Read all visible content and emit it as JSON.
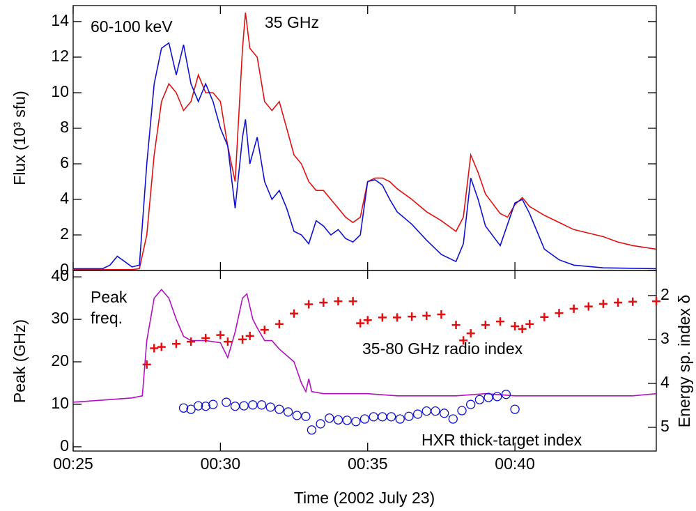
{
  "chart_data": [
    {
      "type": "line",
      "ylabel": "Flux (10³ sfu)",
      "xlim": [
        25,
        44.8
      ],
      "xticks": [
        25,
        30,
        35,
        40
      ],
      "xtick_labels": false,
      "ylim": [
        0,
        14.9
      ],
      "yticks": [
        0,
        2,
        4,
        6,
        8,
        10,
        12,
        14
      ],
      "annotations": [
        {
          "text": "60-100 keV",
          "color": "#1010d0"
        },
        {
          "text": "35 GHz",
          "color": "#e01010"
        }
      ],
      "series": [
        {
          "name": "35 GHz",
          "color": "#e01010",
          "x": [
            25,
            25.5,
            26,
            26.5,
            27,
            27.25,
            27.5,
            27.75,
            28,
            28.25,
            28.5,
            28.75,
            29,
            29.25,
            29.5,
            29.75,
            30,
            30.25,
            30.5,
            30.75,
            30.85,
            31,
            31.25,
            31.5,
            31.75,
            32,
            32.25,
            32.5,
            32.75,
            33,
            33.25,
            33.5,
            33.75,
            34,
            34.25,
            34.5,
            34.75,
            35,
            35.25,
            35.5,
            35.75,
            36,
            36.5,
            37,
            37.5,
            38,
            38.25,
            38.5,
            38.75,
            39,
            39.5,
            39.75,
            40,
            40.25,
            40.5,
            41,
            41.5,
            42,
            42.5,
            43,
            43.5,
            44,
            44.8
          ],
          "values": [
            0.05,
            0.05,
            0.05,
            0.05,
            0.05,
            0.1,
            2,
            6.5,
            9.5,
            10.5,
            10,
            9,
            9.5,
            11,
            10,
            10,
            9.5,
            7,
            5,
            12.5,
            14.5,
            12.5,
            12,
            9.5,
            9,
            9.5,
            8,
            6.5,
            6,
            5,
            4.5,
            4.5,
            4,
            3.5,
            3,
            2.7,
            3,
            5,
            5.2,
            5.2,
            5,
            4.6,
            4,
            3.3,
            2.8,
            2.2,
            3,
            6.5,
            5.5,
            4.3,
            3.2,
            3,
            3.7,
            4.1,
            3.6,
            3.1,
            2.7,
            2.3,
            2.1,
            1.9,
            1.6,
            1.4,
            1.2
          ]
        },
        {
          "name": "60-100 keV",
          "color": "#1010d0",
          "x": [
            25,
            26,
            26.25,
            26.5,
            26.75,
            27,
            27.25,
            27.5,
            27.75,
            28,
            28.25,
            28.5,
            28.75,
            29,
            29.25,
            29.5,
            29.75,
            30,
            30.25,
            30.5,
            30.75,
            30.85,
            31,
            31.25,
            31.5,
            31.75,
            32,
            32.25,
            32.5,
            32.75,
            33,
            33.25,
            33.5,
            33.75,
            34,
            34.25,
            34.5,
            34.75,
            35,
            35.25,
            35.5,
            35.75,
            36,
            36.5,
            37,
            37.5,
            38,
            38.25,
            38.5,
            38.75,
            39,
            39.5,
            40,
            40.25,
            40.5,
            41,
            41.5,
            42,
            43,
            44.8
          ],
          "values": [
            0.1,
            0.1,
            0.3,
            0.8,
            0.5,
            0.2,
            0.3,
            6,
            10.5,
            12.5,
            12.8,
            11,
            12.7,
            10.5,
            9.5,
            10.5,
            9.5,
            8,
            7,
            3.5,
            7.5,
            8.5,
            6,
            7.5,
            5,
            4,
            4.5,
            3.5,
            2.2,
            2,
            1.5,
            2.8,
            2.5,
            2,
            2.3,
            1.8,
            1.6,
            2,
            5,
            5.1,
            4.8,
            4,
            3.3,
            2.6,
            1.7,
            0.9,
            0.5,
            1.5,
            5.2,
            4,
            2.5,
            1.4,
            3.8,
            4,
            3.2,
            1.2,
            0.6,
            0.3,
            0.15,
            0.1
          ]
        }
      ]
    },
    {
      "type": "line",
      "xlabel": "Time (2002 July 23)",
      "ylabel": "Peak (GHz)",
      "y2label": "Energy sp. index δ",
      "xlim": [
        25,
        44.8
      ],
      "xticks": [
        {
          "value": 25,
          "label": "00:25"
        },
        {
          "value": 30,
          "label": "00:30"
        },
        {
          "value": 35,
          "label": "00:35"
        },
        {
          "value": 40,
          "label": "00:40"
        }
      ],
      "xtick_labels": true,
      "ylim": [
        -1,
        41.5
      ],
      "yticks": [
        0,
        10,
        20,
        30,
        40
      ],
      "y2lim": [
        5.54,
        1.43
      ],
      "y2ticks": [
        2,
        3,
        4,
        5
      ],
      "annotations": [
        {
          "text": "Peak",
          "color": "#b010c0"
        },
        {
          "text": "freq.",
          "color": "#b010c0"
        },
        {
          "text": "35-80 GHz radio index",
          "color": "#e01010"
        },
        {
          "text": "HXR thick-target index",
          "color": "#1010d0"
        }
      ],
      "series": [
        {
          "name": "Peak freq.",
          "color": "#b010c0",
          "style": "line",
          "x": [
            25,
            26,
            27,
            27.35,
            27.5,
            27.75,
            28,
            28.25,
            28.5,
            28.75,
            29,
            29.5,
            30,
            30.25,
            30.5,
            30.75,
            30.9,
            31.1,
            31.25,
            31.5,
            31.75,
            32,
            32.5,
            32.75,
            32.9,
            33,
            33.1,
            33.5,
            34,
            35,
            36,
            37,
            38,
            39,
            40,
            41,
            42,
            43,
            44,
            44.8
          ],
          "values": [
            10.5,
            11,
            11.5,
            12,
            25,
            35,
            37,
            35,
            30,
            26,
            25,
            25,
            24.5,
            21,
            27,
            35,
            36,
            30,
            28,
            25,
            25,
            23,
            20,
            15,
            13,
            16,
            13,
            12.5,
            12.5,
            12.5,
            12,
            12,
            12,
            12.5,
            12,
            12,
            12,
            12,
            12,
            12.5
          ]
        },
        {
          "name": "35-80 GHz radio index",
          "color": "#e01010",
          "style": "plus",
          "axis": "y2",
          "x": [
            27.5,
            27.75,
            28,
            28.5,
            29,
            29.5,
            30,
            30.25,
            30.75,
            31,
            31.5,
            32,
            32.5,
            33,
            33.5,
            34,
            34.5,
            34.75,
            35,
            35.5,
            36,
            36.5,
            37,
            37.5,
            38,
            38.25,
            38.5,
            39,
            39.5,
            40,
            40.25,
            40.5,
            41,
            41.5,
            42,
            42.5,
            43,
            43.5,
            44,
            44.8
          ],
          "values": [
            3.57,
            3.2,
            3.17,
            3.1,
            3.05,
            2.97,
            2.9,
            3.05,
            3.0,
            2.92,
            2.78,
            2.65,
            2.41,
            2.2,
            2.16,
            2.13,
            2.13,
            2.63,
            2.56,
            2.5,
            2.5,
            2.48,
            2.46,
            2.43,
            2.67,
            3.02,
            2.86,
            2.67,
            2.59,
            2.7,
            2.76,
            2.65,
            2.49,
            2.4,
            2.3,
            2.25,
            2.19,
            2.16,
            2.14,
            2.13
          ]
        },
        {
          "name": "HXR thick-target index",
          "color": "#1010d0",
          "style": "circle",
          "axis": "y2",
          "x": [
            28.75,
            29,
            29.25,
            29.5,
            29.75,
            30.2,
            30.5,
            30.8,
            31.1,
            31.4,
            31.7,
            32,
            32.3,
            32.6,
            32.9,
            33.1,
            33.4,
            33.7,
            34,
            34.3,
            34.6,
            34.9,
            35.2,
            35.5,
            35.8,
            36.1,
            36.4,
            36.7,
            37,
            37.3,
            37.6,
            37.9,
            38.2,
            38.5,
            38.8,
            39.1,
            39.4,
            39.7,
            40
          ],
          "values": [
            4.56,
            4.59,
            4.51,
            4.52,
            4.48,
            4.43,
            4.52,
            4.51,
            4.49,
            4.49,
            4.54,
            4.59,
            4.65,
            4.73,
            4.75,
            5.06,
            4.92,
            4.79,
            4.83,
            4.84,
            4.87,
            4.81,
            4.76,
            4.76,
            4.76,
            4.81,
            4.75,
            4.7,
            4.63,
            4.63,
            4.68,
            4.81,
            4.62,
            4.48,
            4.37,
            4.32,
            4.3,
            4.25,
            4.59
          ]
        }
      ]
    }
  ]
}
